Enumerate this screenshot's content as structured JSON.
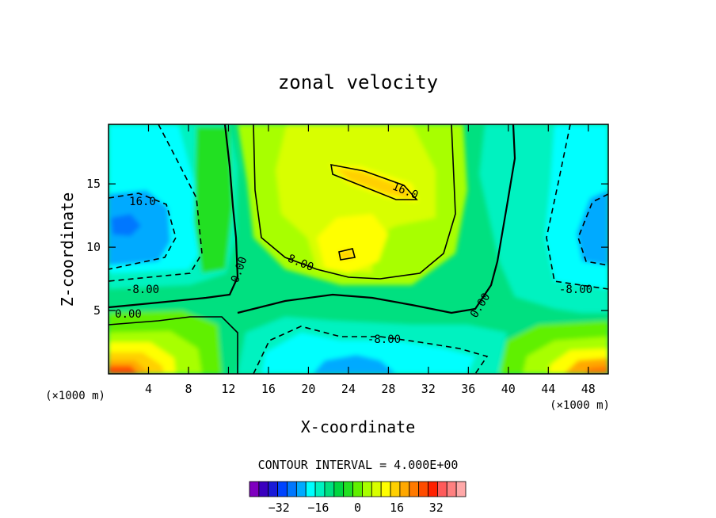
{
  "chart_data": {
    "type": "heatmap",
    "title": "zonal velocity",
    "xlabel": "X-coordinate",
    "ylabel": "Z-coordinate",
    "x_unit": "(×1000 m)",
    "z_unit": "(×1000 m)",
    "xlim": [
      0,
      50
    ],
    "ylim": [
      0,
      19.7
    ],
    "x_ticks": [
      4,
      8,
      12,
      16,
      20,
      24,
      28,
      32,
      36,
      40,
      44,
      48
    ],
    "y_ticks": [
      5,
      10,
      15
    ],
    "contour_interval_text": "CONTOUR INTERVAL = 4.000E+00",
    "contour_interval": 4,
    "levels": [
      -36,
      -32,
      -28,
      -24,
      -20,
      -16,
      -12,
      -8,
      -4,
      0,
      4,
      8,
      12,
      16,
      20,
      24,
      28,
      32,
      36
    ],
    "colorbar_labels": [
      "-32",
      "-16",
      "0",
      "16",
      "32"
    ],
    "colors": [
      "#7f00bf",
      "#3a00bf",
      "#1a1ad8",
      "#0044ff",
      "#0077ff",
      "#00aaff",
      "#00ffff",
      "#00f2c0",
      "#00e080",
      "#00d640",
      "#22e022",
      "#60f000",
      "#a8ff00",
      "#d8ff00",
      "#ffff00",
      "#ffd000",
      "#ffa800",
      "#ff7a00",
      "#ff4c00",
      "#ff2000",
      "#ff5a5a",
      "#ff8080",
      "#ffa8a8"
    ],
    "contour_labels": [
      "16.0",
      "16.0",
      "0.00",
      "8.00",
      "-8.00",
      "0.00",
      "-8.00",
      "0.00",
      "-8.00"
    ]
  }
}
